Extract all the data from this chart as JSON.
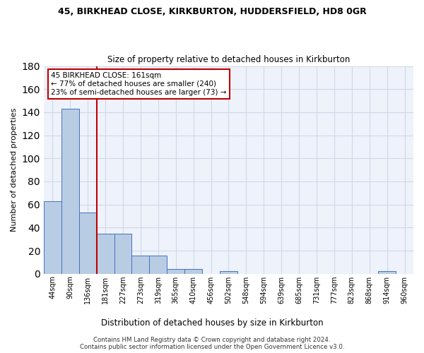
{
  "title1": "45, BIRKHEAD CLOSE, KIRKBURTON, HUDDERSFIELD, HD8 0GR",
  "title2": "Size of property relative to detached houses in Kirkburton",
  "xlabel": "Distribution of detached houses by size in Kirkburton",
  "ylabel": "Number of detached properties",
  "footer1": "Contains HM Land Registry data © Crown copyright and database right 2024.",
  "footer2": "Contains public sector information licensed under the Open Government Licence v3.0.",
  "bin_labels": [
    "44sqm",
    "90sqm",
    "136sqm",
    "181sqm",
    "227sqm",
    "273sqm",
    "319sqm",
    "365sqm",
    "410sqm",
    "456sqm",
    "502sqm",
    "548sqm",
    "594sqm",
    "639sqm",
    "685sqm",
    "731sqm",
    "777sqm",
    "823sqm",
    "868sqm",
    "914sqm",
    "960sqm"
  ],
  "bar_values": [
    63,
    143,
    53,
    35,
    35,
    16,
    16,
    4,
    4,
    0,
    2,
    0,
    0,
    0,
    0,
    0,
    0,
    0,
    0,
    2,
    0
  ],
  "bar_color": "#b8cce4",
  "bar_edge_color": "#4472c4",
  "grid_color": "#d0d8e8",
  "background_color": "#eef2fb",
  "vline_x_index": 2,
  "vline_color": "#c00000",
  "annotation_line1": "45 BIRKHEAD CLOSE: 161sqm",
  "annotation_line2": "← 77% of detached houses are smaller (240)",
  "annotation_line3": "23% of semi-detached houses are larger (73) →",
  "annotation_box_color": "#ffffff",
  "annotation_box_edge": "#c00000",
  "ylim": [
    0,
    180
  ],
  "yticks": [
    0,
    20,
    40,
    60,
    80,
    100,
    120,
    140,
    160,
    180
  ]
}
